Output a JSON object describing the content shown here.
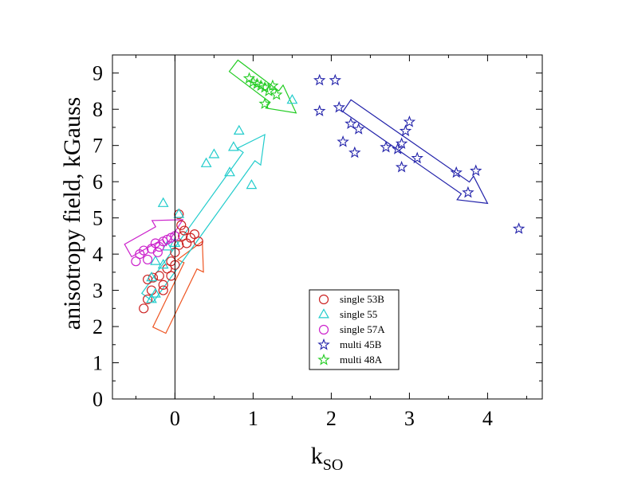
{
  "chart_data": {
    "type": "scatter",
    "xlabel": "k",
    "xlabel_sub": "SO",
    "ylabel": "anisotropy field, kGauss",
    "xlim": [
      -0.8,
      4.7
    ],
    "ylim": [
      0,
      9.5
    ],
    "x_ticks": [
      0,
      1,
      2,
      3,
      4
    ],
    "y_ticks": [
      0,
      1,
      2,
      3,
      4,
      5,
      6,
      7,
      8,
      9
    ],
    "legend_position": "lower-center",
    "grid": false,
    "zero_line_x": 0,
    "series": [
      {
        "name": "single 53B",
        "marker": "circle",
        "color": "#cc2222",
        "points": [
          [
            -0.4,
            2.5
          ],
          [
            -0.35,
            2.75
          ],
          [
            -0.3,
            3.0
          ],
          [
            -0.35,
            3.3
          ],
          [
            -0.28,
            3.35
          ],
          [
            -0.2,
            3.4
          ],
          [
            -0.15,
            3.15
          ],
          [
            -0.1,
            3.6
          ],
          [
            -0.05,
            3.4
          ],
          [
            -0.05,
            3.8
          ],
          [
            0.0,
            4.05
          ],
          [
            0.05,
            4.25
          ],
          [
            0.1,
            4.5
          ],
          [
            0.12,
            4.65
          ],
          [
            0.2,
            4.45
          ],
          [
            0.25,
            4.55
          ],
          [
            0.3,
            4.35
          ],
          [
            0.08,
            4.8
          ],
          [
            0.05,
            5.1
          ],
          [
            0.15,
            4.3
          ],
          [
            -0.15,
            3.0
          ],
          [
            0.0,
            3.7
          ]
        ]
      },
      {
        "name": "single 55",
        "marker": "triangle",
        "color": "#22cccc",
        "points": [
          [
            -0.3,
            2.75
          ],
          [
            -0.25,
            2.9
          ],
          [
            -0.3,
            3.35
          ],
          [
            -0.25,
            3.8
          ],
          [
            -0.15,
            3.7
          ],
          [
            -0.1,
            4.2
          ],
          [
            0.0,
            4.3
          ],
          [
            0.05,
            5.1
          ],
          [
            0.4,
            6.5
          ],
          [
            0.5,
            6.75
          ],
          [
            0.7,
            6.25
          ],
          [
            0.75,
            6.95
          ],
          [
            0.82,
            7.4
          ],
          [
            0.98,
            5.9
          ],
          [
            -0.15,
            5.4
          ],
          [
            1.5,
            8.25
          ]
        ]
      },
      {
        "name": "single 57A",
        "marker": "circle",
        "color": "#cc22cc",
        "points": [
          [
            -0.5,
            3.8
          ],
          [
            -0.45,
            4.0
          ],
          [
            -0.4,
            4.1
          ],
          [
            -0.35,
            3.85
          ],
          [
            -0.3,
            4.15
          ],
          [
            -0.25,
            4.3
          ],
          [
            -0.2,
            4.2
          ],
          [
            -0.15,
            4.35
          ],
          [
            -0.1,
            4.4
          ],
          [
            -0.05,
            4.45
          ],
          [
            0.0,
            4.5
          ],
          [
            -0.22,
            4.05
          ]
        ]
      },
      {
        "name": "multi 45B",
        "marker": "star",
        "color": "#2222aa",
        "points": [
          [
            1.85,
            8.8
          ],
          [
            2.05,
            8.8
          ],
          [
            1.85,
            7.95
          ],
          [
            2.1,
            8.05
          ],
          [
            2.15,
            7.1
          ],
          [
            2.25,
            7.6
          ],
          [
            2.35,
            7.45
          ],
          [
            2.3,
            6.8
          ],
          [
            2.7,
            6.95
          ],
          [
            2.85,
            6.9
          ],
          [
            2.9,
            7.05
          ],
          [
            2.9,
            6.4
          ],
          [
            2.95,
            7.4
          ],
          [
            3.0,
            7.65
          ],
          [
            3.1,
            6.65
          ],
          [
            3.6,
            6.25
          ],
          [
            3.75,
            5.7
          ],
          [
            3.85,
            6.3
          ],
          [
            4.4,
            4.7
          ]
        ]
      },
      {
        "name": "multi 48A",
        "marker": "star",
        "color": "#22cc22",
        "points": [
          [
            0.95,
            8.85
          ],
          [
            1.0,
            8.75
          ],
          [
            1.05,
            8.7
          ],
          [
            1.1,
            8.65
          ],
          [
            1.15,
            8.6
          ],
          [
            1.25,
            8.65
          ],
          [
            1.2,
            8.5
          ],
          [
            1.3,
            8.4
          ],
          [
            1.15,
            8.15
          ]
        ]
      }
    ],
    "arrows": [
      {
        "color": "#ee5522",
        "from": [
          -0.2,
          1.9
        ],
        "to": [
          0.35,
          4.35
        ]
      },
      {
        "color": "#22cccc",
        "from": [
          -0.35,
          2.8
        ],
        "to": [
          1.15,
          7.3
        ]
      },
      {
        "color": "#cc22cc",
        "from": [
          -0.6,
          4.1
        ],
        "to": [
          0.1,
          4.95
        ]
      },
      {
        "color": "#22cc22",
        "from": [
          0.75,
          9.2
        ],
        "to": [
          1.55,
          7.9
        ]
      },
      {
        "color": "#2222aa",
        "from": [
          2.2,
          8.1
        ],
        "to": [
          4.0,
          5.4
        ]
      }
    ]
  }
}
